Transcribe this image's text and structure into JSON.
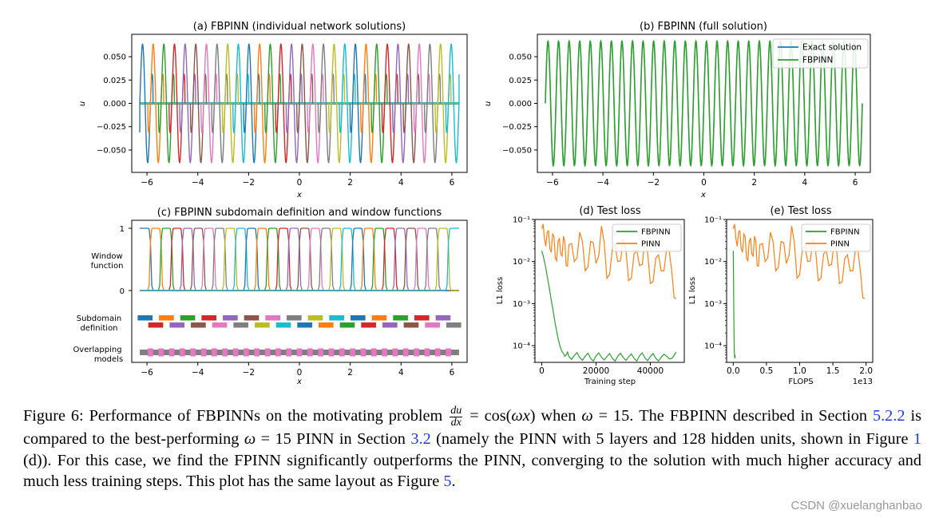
{
  "colors": {
    "tab10": [
      "#1f77b4",
      "#ff7f0e",
      "#2ca02c",
      "#d62728",
      "#9467bd",
      "#8c564b",
      "#e377c2",
      "#7f7f7f",
      "#bcbd22",
      "#17becf"
    ],
    "exact": "#1f77b4",
    "fbpinn": "#2ca02c",
    "pinn": "#ff7f0e",
    "overlap": "#e377c2",
    "model_gray": "#7f7f7f",
    "link": "#1f3ddb"
  },
  "panels": {
    "a": {
      "title": "(a) FBPINN (individual network solutions)",
      "ylabel": "u",
      "xlabel": "x"
    },
    "b": {
      "title": "(b) FBPINN (full solution)",
      "ylabel": "u",
      "xlabel": "x"
    },
    "c": {
      "title": "(c) FBPINN subdomain definition and window functions",
      "xlabel": "x",
      "row_labels": {
        "window_1": "Window",
        "window_2": "function",
        "subdomain_1": "Subdomain",
        "subdomain_2": "definition",
        "overlap_1": "Overlapping",
        "overlap_2": "models"
      },
      "yticks": [
        "1",
        "0"
      ]
    },
    "d": {
      "title": "(d) Test loss",
      "ylabel": "L1 loss",
      "xlabel": "Training step"
    },
    "e": {
      "title": "(e) Test loss",
      "ylabel": "L1 loss",
      "xlabel": "FLOPS",
      "offset_text": "1e13"
    }
  },
  "chart_data": [
    {
      "id": "a",
      "type": "line",
      "title": "(a) FBPINN (individual network solutions)",
      "xlabel": "x",
      "ylabel": "u",
      "xlim": [
        -6.6,
        6.6
      ],
      "ylim": [
        -0.074,
        0.074
      ],
      "xticks": [
        -6,
        -4,
        -2,
        0,
        2,
        4,
        6
      ],
      "xtick_labels": [
        "−6",
        "−4",
        "−2",
        "0",
        "2",
        "4",
        "6"
      ],
      "yticks": [
        0.05,
        0.025,
        0.0,
        -0.025,
        -0.05
      ],
      "ytick_labels": [
        "0.050",
        "0.025",
        "0.000",
        "−0.025",
        "−0.050"
      ],
      "omega": 15,
      "amplitude": 0.0667,
      "x_range": [
        -6.2832,
        6.2832
      ],
      "subdomains": 30,
      "description": "Each subdomain network solution (u = sin(15x)/15 within its subdomain, ~0 elsewhere), coloured with the tab10 cycle"
    },
    {
      "id": "b",
      "type": "line",
      "title": "(b) FBPINN (full solution)",
      "xlabel": "x",
      "ylabel": "u",
      "xlim": [
        -6.6,
        6.6
      ],
      "ylim": [
        -0.074,
        0.074
      ],
      "xticks": [
        -6,
        -4,
        -2,
        0,
        2,
        4,
        6
      ],
      "xtick_labels": [
        "−6",
        "−4",
        "−2",
        "0",
        "2",
        "4",
        "6"
      ],
      "yticks": [
        0.05,
        0.025,
        0.0,
        -0.025,
        -0.05
      ],
      "ytick_labels": [
        "0.050",
        "0.025",
        "0.000",
        "−0.025",
        "−0.050"
      ],
      "omega": 15,
      "amplitude": 0.0667,
      "x_range": [
        -6.2832,
        6.2832
      ],
      "legend": {
        "position": "top-right",
        "entries": [
          "Exact solution",
          "FBPINN"
        ]
      },
      "series": [
        {
          "name": "Exact solution",
          "function": "sin(15x)/15"
        },
        {
          "name": "FBPINN",
          "function": "sin(15x)/15"
        }
      ]
    },
    {
      "id": "c",
      "type": "line",
      "title": "(c) FBPINN subdomain definition and window functions",
      "xlabel": "x",
      "xlim": [
        -6.6,
        6.6
      ],
      "xticks": [
        -6,
        -4,
        -2,
        0,
        2,
        4,
        6
      ],
      "xtick_labels": [
        "−6",
        "−4",
        "−2",
        "0",
        "2",
        "4",
        "6"
      ],
      "x_range": [
        -6.2832,
        6.2832
      ],
      "subdomains": 30,
      "window_yticks": [
        1,
        0
      ]
    },
    {
      "id": "d",
      "type": "line",
      "title": "(d) Test loss",
      "xlabel": "Training step",
      "ylabel": "L1 loss",
      "yscale": "log",
      "xlim": [
        -2500,
        52500
      ],
      "ylim": [
        4e-05,
        0.1
      ],
      "xticks": [
        0,
        20000,
        40000
      ],
      "xtick_labels": [
        "0",
        "20000",
        "40000"
      ],
      "yticks": [
        0.1,
        0.01,
        0.001,
        0.0001
      ],
      "ytick_labels": [
        "10⁻¹",
        "10⁻²",
        "10⁻³",
        "10⁻⁴"
      ],
      "legend": {
        "position": "top-right",
        "entries": [
          "FBPINN",
          "PINN"
        ]
      },
      "series": [
        {
          "name": "FBPINN",
          "x": [
            0,
            500,
            1000,
            1500,
            2000,
            2500,
            3000,
            3500,
            4000,
            4500,
            5000,
            5500,
            6000,
            6500,
            7000,
            7500,
            8000,
            9000,
            10000,
            12000,
            14000,
            16000,
            18000,
            20000,
            22000,
            24000,
            26000,
            28000,
            30000,
            32000,
            34000,
            36000,
            38000,
            40000,
            42000,
            44000,
            46000,
            48000,
            49500
          ],
          "y": [
            0.018,
            0.014,
            0.01,
            0.007,
            0.0045,
            0.003,
            0.0019,
            0.0012,
            0.0008,
            0.0005,
            0.00032,
            0.00022,
            0.00015,
            0.00011,
            8.5e-05,
            7.2e-05,
            6.5e-05,
            6e-05,
            5.5e-05,
            5.8e-05,
            5.2e-05,
            5.6e-05,
            5e-05,
            5.7e-05,
            5.3e-05,
            5.5e-05,
            5e-05,
            5.6e-05,
            5.2e-05,
            5.4e-05,
            5e-05,
            5.7e-05,
            5.1e-05,
            5.5e-05,
            5e-05,
            5.3e-05,
            5.6e-05,
            5e-05,
            7e-05
          ]
        },
        {
          "name": "PINN",
          "x": [
            0,
            1000,
            2000,
            3000,
            4000,
            5000,
            6000,
            7000,
            8000,
            9000,
            10000,
            12000,
            14000,
            16000,
            18000,
            20000,
            22000,
            24000,
            26000,
            28000,
            30000,
            32000,
            34000,
            36000,
            38000,
            40000,
            42000,
            44000,
            46000,
            48000,
            49500
          ],
          "y": [
            0.06,
            0.035,
            0.05,
            0.02,
            0.045,
            0.012,
            0.03,
            0.015,
            0.04,
            0.008,
            0.025,
            0.01,
            0.05,
            0.006,
            0.03,
            0.009,
            0.07,
            0.004,
            0.02,
            0.01,
            0.035,
            0.0035,
            0.015,
            0.008,
            0.03,
            0.003,
            0.012,
            0.006,
            0.02,
            0.005,
            0.0013
          ]
        }
      ]
    },
    {
      "id": "e",
      "type": "line",
      "title": "(e) Test loss",
      "xlabel": "FLOPS",
      "ylabel": "L1 loss",
      "offset_text": "1e13",
      "yscale": "log",
      "xlim": [
        -0.1,
        2.1
      ],
      "ylim": [
        4e-05,
        0.1
      ],
      "xticks": [
        0.0,
        0.5,
        1.0,
        1.5,
        2.0
      ],
      "xtick_labels": [
        "0.0",
        "0.5",
        "1.0",
        "1.5",
        "2.0"
      ],
      "yticks": [
        0.1,
        0.01,
        0.001,
        0.0001
      ],
      "ytick_labels": [
        "10⁻¹",
        "10⁻²",
        "10⁻³",
        "10⁻⁴"
      ],
      "legend": {
        "position": "top-right",
        "entries": [
          "FBPINN",
          "PINN"
        ]
      },
      "series": [
        {
          "name": "FBPINN",
          "x": [
            0.0,
            0.005,
            0.01,
            0.015,
            0.02,
            0.025,
            0.03
          ],
          "y": [
            0.018,
            0.003,
            0.0003,
            8e-05,
            5.5e-05,
            5e-05,
            6e-05
          ]
        },
        {
          "name": "PINN",
          "x": [
            0.0,
            0.04,
            0.08,
            0.12,
            0.16,
            0.2,
            0.24,
            0.28,
            0.32,
            0.36,
            0.4,
            0.48,
            0.56,
            0.64,
            0.72,
            0.8,
            0.88,
            0.96,
            1.04,
            1.12,
            1.2,
            1.28,
            1.36,
            1.44,
            1.52,
            1.6,
            1.68,
            1.76,
            1.84,
            1.92,
            1.98
          ],
          "y": [
            0.06,
            0.035,
            0.05,
            0.02,
            0.045,
            0.012,
            0.03,
            0.015,
            0.04,
            0.008,
            0.025,
            0.01,
            0.05,
            0.006,
            0.03,
            0.009,
            0.07,
            0.004,
            0.02,
            0.01,
            0.035,
            0.0035,
            0.015,
            0.008,
            0.03,
            0.003,
            0.012,
            0.006,
            0.02,
            0.005,
            0.0013
          ]
        }
      ]
    }
  ],
  "caption": {
    "p1": "Figure 6: Performance of FBPINNs on the motivating problem",
    "frac_num": "du",
    "frac_den": "dx",
    "p2": " = cos(",
    "omega1": "ωx",
    "p3": ") when ",
    "omega2": "ω",
    "p4": " = 15. The FBPINN described in Section ",
    "link1": "5.2.2",
    "p5": " is compared to the best-performing ",
    "omega3": "ω",
    "p6": " = 15 PINN in Section ",
    "link2": "3.2",
    "p7": " (namely the PINN with 5 layers and 128 hidden units, shown in Figure ",
    "link3": "1",
    "p8": " (d)). For this case, we find the FPINN significantly outperforms the PINN, converging to the solution with much higher accuracy and much less training steps. This plot has the same layout as Figure ",
    "link4": "5",
    "p9": "."
  },
  "watermark": "CSDN @xuelanghanbao"
}
